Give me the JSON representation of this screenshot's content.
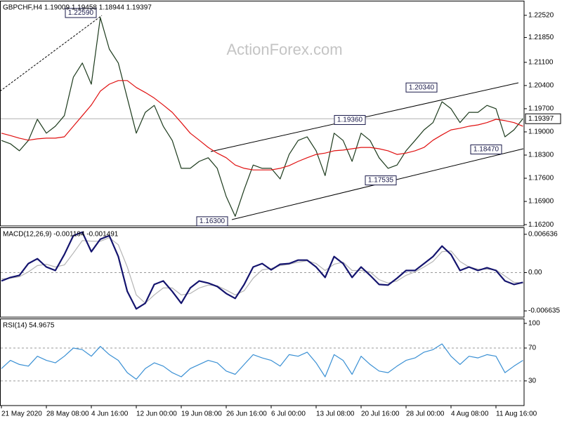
{
  "chart_data": [
    {
      "type": "line",
      "title": "GBPCHF,H4  1.19009 1.19458 1.18944 1.19397",
      "watermark": "ActionForex.com",
      "ylim": [
        1.1616,
        1.2294
      ],
      "yticks": [
        {
          "value": 1.162,
          "label": "1.16200"
        },
        {
          "value": 1.169,
          "label": "1.16900"
        },
        {
          "value": 1.176,
          "label": "1.17600"
        },
        {
          "value": 1.183,
          "label": "1.18300"
        },
        {
          "value": 1.19,
          "label": "1.19000"
        },
        {
          "value": 1.197,
          "label": "1.19700"
        },
        {
          "value": 1.204,
          "label": "1.20400"
        },
        {
          "value": 1.211,
          "label": "1.21100"
        },
        {
          "value": 1.2185,
          "label": "1.21850"
        },
        {
          "value": 1.2252,
          "label": "1.22520"
        }
      ],
      "last_price": 1.19397,
      "series": [
        {
          "color": "#1c3a1c",
          "values": [
            1.1874,
            1.1864,
            1.1843,
            1.1874,
            1.1938,
            1.1896,
            1.1917,
            1.1949,
            1.2065,
            1.2108,
            1.2044,
            1.2245,
            1.215,
            1.2108,
            1.2002,
            1.1896,
            1.1959,
            1.198,
            1.1917,
            1.1874,
            1.179,
            1.179,
            1.1811,
            1.1822,
            1.179,
            1.1705,
            1.1645,
            1.1726,
            1.18,
            1.179,
            1.179,
            1.1758,
            1.1832,
            1.1874,
            1.1885,
            1.1843,
            1.1768,
            1.1896,
            1.1874,
            1.1811,
            1.1896,
            1.1874,
            1.1822,
            1.179,
            1.18,
            1.1843,
            1.1874,
            1.1906,
            1.1928,
            1.1991,
            1.197,
            1.1928,
            1.1959,
            1.1959,
            1.198,
            1.197,
            1.1885,
            1.1906,
            1.194
          ]
        },
        {
          "color": "#e01010",
          "values": [
            1.1896,
            1.1889,
            1.1881,
            1.1875,
            1.1879,
            1.1881,
            1.1881,
            1.1885,
            1.1917,
            1.1949,
            1.1981,
            1.2023,
            1.2044,
            1.2055,
            1.2055,
            1.2034,
            1.2019,
            1.2002,
            1.1981,
            1.1959,
            1.1928,
            1.1896,
            1.1875,
            1.1853,
            1.1836,
            1.1822,
            1.18,
            1.179,
            1.1785,
            1.1785,
            1.1785,
            1.179,
            1.1798,
            1.1811,
            1.1822,
            1.1832,
            1.1836,
            1.1843,
            1.1845,
            1.1849,
            1.1853,
            1.1853,
            1.1849,
            1.1843,
            1.1832,
            1.1836,
            1.1843,
            1.1853,
            1.1875,
            1.1891,
            1.1906,
            1.1911,
            1.1917,
            1.1921,
            1.1928,
            1.1938,
            1.1934,
            1.1928,
            1.1917
          ]
        }
      ],
      "annotations": [
        {
          "value": 1.2259,
          "label": "1.22590"
        },
        {
          "value": 1.163,
          "label": "1.16300"
        },
        {
          "value": 1.1936,
          "label": "1.19360"
        },
        {
          "value": 1.17535,
          "label": "1.17535"
        },
        {
          "value": 1.2034,
          "label": "1.20340"
        },
        {
          "value": 1.1847,
          "label": "1.18470"
        }
      ]
    },
    {
      "type": "line",
      "title": "MACD(12,26,9) -0.001194 -0.001491",
      "ylim": [
        -0.00772,
        0.00772
      ],
      "yticks": [
        0.006636,
        {
          "value": 0,
          "label": "0.00"
        },
        -0.006635
      ],
      "levels": [
        0
      ],
      "series": [
        {
          "color": "#b4b4b4",
          "values": [
            -0.00109,
            -0.00097,
            -0.00072,
            0.00012,
            0.00121,
            0.00145,
            0.00097,
            0.00133,
            0.00338,
            0.00555,
            0.00543,
            0.00543,
            0.00604,
            0.00483,
            0.00097,
            -0.00386,
            -0.00531,
            -0.00386,
            -0.00266,
            -0.00266,
            -0.00386,
            -0.00362,
            -0.00266,
            -0.00217,
            -0.00229,
            -0.00302,
            -0.00386,
            -0.00314,
            -0.00097,
            0.00048,
            0.00072,
            0.00121,
            0.00145,
            0.00181,
            0.00205,
            0.00157,
            0.00036,
            0.00145,
            0.00181,
            0.00036,
            0.00036,
            0.00012,
            -0.00121,
            -0.00181,
            -0.00145,
            -0.00048,
            0.00012,
            0.00097,
            0.00193,
            0.00362,
            0.00374,
            0.00193,
            0.00097,
            0.0006,
            0.0006,
            0.00048,
            -0.0006,
            -0.00169,
            -0.00181
          ]
        },
        {
          "color": "#14146e",
          "values": [
            -0.00145,
            -0.00084,
            -0.00048,
            0.00157,
            0.00241,
            0.00097,
            0.00036,
            0.00314,
            0.0064,
            0.007,
            0.00362,
            0.00579,
            0.0064,
            0.00278,
            -0.00326,
            -0.00628,
            -0.00531,
            -0.00205,
            -0.00145,
            -0.00326,
            -0.00531,
            -0.00266,
            -0.00145,
            -0.00181,
            -0.00241,
            -0.00362,
            -0.00447,
            -0.00205,
            0.00097,
            0.00157,
            0.00048,
            0.00145,
            0.00157,
            0.00217,
            0.00217,
            0.00097,
            -0.00084,
            0.00278,
            0.00157,
            -0.00084,
            0.00097,
            -0.00048,
            -0.00205,
            -0.00217,
            -0.00097,
            0.00036,
            0.00036,
            0.00157,
            0.00278,
            0.00459,
            0.00314,
            0.00036,
            0.00097,
            0.00036,
            0.00084,
            0.00036,
            -0.00145,
            -0.00205,
            -0.00169
          ]
        }
      ]
    },
    {
      "type": "line",
      "title": "RSI(14) 54.9675",
      "ylim": [
        0,
        105
      ],
      "yticks": [
        100,
        70,
        30
      ],
      "levels": [
        70,
        30
      ],
      "categories": [
        "21 May 2020",
        null,
        null,
        null,
        null,
        "28 May 08:00",
        null,
        null,
        null,
        null,
        "4 Jun 16:00",
        null,
        null,
        null,
        null,
        "12 Jun 00:00",
        null,
        null,
        null,
        null,
        "19 Jun 08:00",
        null,
        null,
        null,
        null,
        "26 Jun 16:00",
        null,
        null,
        null,
        null,
        "6 Jul 00:00",
        null,
        null,
        null,
        null,
        "13 Jul 08:00",
        null,
        null,
        null,
        null,
        "20 Jul 16:00",
        null,
        null,
        null,
        null,
        "28 Jul 00:00",
        null,
        null,
        null,
        null,
        "4 Aug 08:00",
        null,
        null,
        null,
        null,
        "11 Aug 16:00",
        null,
        null,
        null
      ],
      "series": [
        {
          "color": "#3a90d4",
          "values": [
            45,
            55,
            50,
            48,
            60,
            55,
            52,
            60,
            70,
            68,
            60,
            72,
            62,
            55,
            40,
            32,
            45,
            52,
            48,
            40,
            35,
            45,
            50,
            55,
            52,
            42,
            38,
            50,
            62,
            58,
            55,
            48,
            62,
            60,
            65,
            52,
            35,
            62,
            55,
            38,
            60,
            50,
            42,
            40,
            48,
            55,
            58,
            65,
            68,
            75,
            60,
            50,
            60,
            58,
            62,
            60,
            40,
            48,
            55
          ]
        }
      ]
    }
  ]
}
